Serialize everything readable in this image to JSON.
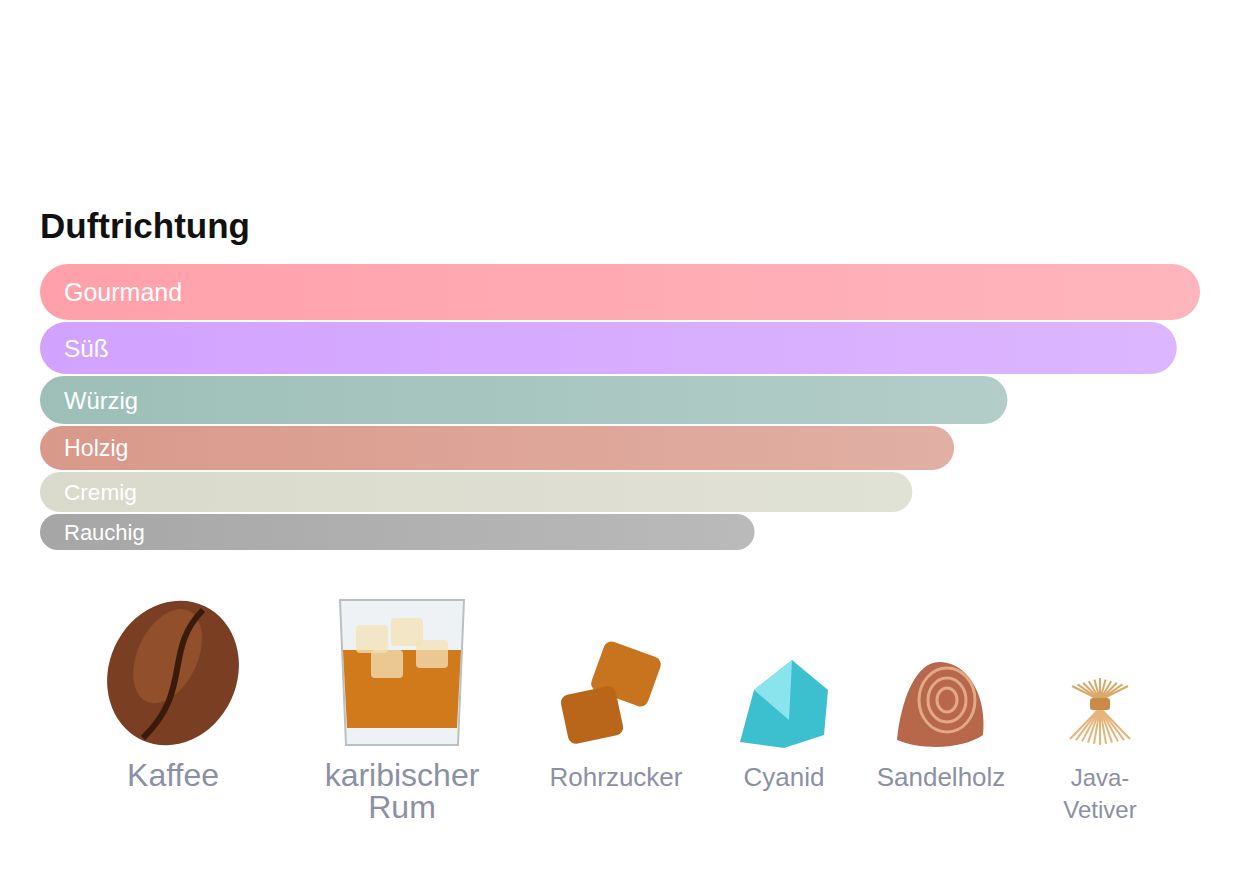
{
  "chart_data": {
    "type": "bar",
    "title": "Duftrichtung",
    "orientation": "horizontal",
    "categories": [
      "Gourmand",
      "Süß",
      "Würzig",
      "Holzig",
      "Cremig",
      "Rauchig"
    ],
    "values": [
      100,
      98,
      83.4,
      78.8,
      75.2,
      61.6
    ],
    "colors": [
      "#ffa0aa",
      "#d2a2ff",
      "#9dbfb8",
      "#d9998a",
      "#d9dacb",
      "#a6a6a6"
    ],
    "xlim": [
      0,
      100
    ],
    "tick_labels": false
  },
  "ingredients": [
    "Kaffee",
    "karibischer Rum",
    "Rohrzucker",
    "Cyanid",
    "Sandelholz",
    "Java-Vetiver"
  ]
}
